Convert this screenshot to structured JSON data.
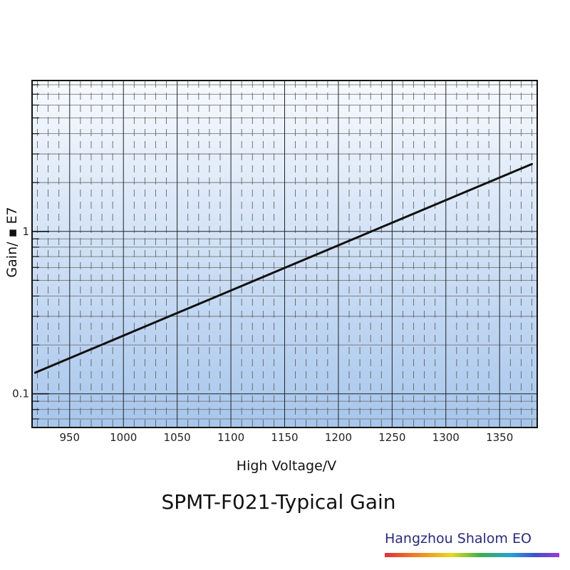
{
  "chart_data": {
    "type": "line",
    "title": "SPMT-F021-Typical Gain",
    "xlabel": "High Voltage/V",
    "ylabel": "Gain/ ▪ E7",
    "xlim": [
      915,
      1385
    ],
    "ylim": [
      0.062,
      8.5
    ],
    "yscale": "log",
    "grid": true,
    "x_ticks": [
      950,
      1000,
      1050,
      1100,
      1150,
      1200,
      1250,
      1300,
      1350
    ],
    "x_tick_labels": [
      "950",
      "1000",
      "1050",
      "1100",
      "1150",
      "1200",
      "1250",
      "1300",
      "1350"
    ],
    "y_ticks": [
      0.1,
      1
    ],
    "y_tick_labels": [
      "0.1",
      "1"
    ],
    "series": [
      {
        "color": "#111111",
        "x": [
          918,
          1380
        ],
        "y": [
          0.135,
          2.6
        ]
      }
    ]
  },
  "branding": {
    "name": "Hangzhou Shalom EO"
  },
  "colors": {
    "plot_top": "#f7fafe",
    "plot_bottom": "#a7c6ec",
    "line": "#111111"
  }
}
